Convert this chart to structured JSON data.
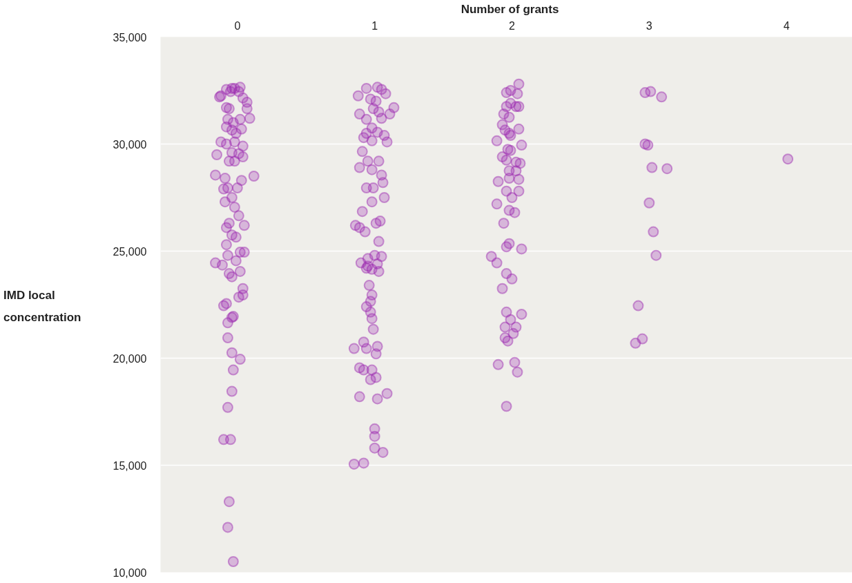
{
  "chart_data": {
    "type": "scatter",
    "xlabel": "Number of grants",
    "ylabel": "IMD local concentration",
    "xlim": [
      -0.56,
      4.53
    ],
    "xticks": [
      0,
      1,
      2,
      3,
      4
    ],
    "ylim": [
      10000,
      35000
    ],
    "yticks": [
      {
        "value": 10000,
        "label": "10,000"
      },
      {
        "value": 15000,
        "label": "15,000"
      },
      {
        "value": 20000,
        "label": "20,000"
      },
      {
        "value": 25000,
        "label": "25,000"
      },
      {
        "value": 30000,
        "label": "30,000"
      },
      {
        "value": 35000,
        "label": "35,000"
      }
    ],
    "grid": "y",
    "marker": "circle",
    "series": [
      {
        "color": "#9c27b0",
        "x": [
          -0.13,
          -0.12,
          -0.08,
          -0.04,
          -0.02,
          0.02,
          0.01,
          -0.05,
          -0.08,
          -0.06,
          0.04,
          0.07,
          0.07,
          -0.07,
          -0.03,
          0.02,
          0.09,
          -0.08,
          -0.04,
          -0.01,
          0.03,
          -0.02,
          -0.12,
          -0.08,
          0.04,
          -0.04,
          0.01,
          -0.15,
          0.04,
          -0.06,
          -0.02,
          -0.16,
          -0.09,
          0.03,
          0.12,
          -0.07,
          -0.1,
          0.0,
          -0.04,
          -0.09,
          0.01,
          -0.02,
          0.05,
          -0.08,
          -0.06,
          -0.04,
          -0.01,
          -0.16,
          -0.11,
          -0.07,
          -0.08,
          0.02,
          0.05,
          -0.06,
          -0.01,
          0.02,
          -0.04,
          0.04,
          0.04,
          0.01,
          -0.1,
          -0.08,
          -0.04,
          -0.03,
          -0.07,
          -0.07,
          0.02,
          -0.04,
          -0.03,
          -0.04,
          -0.07,
          -0.1,
          -0.05,
          -0.06,
          -0.07,
          -0.03,
          1.02,
          0.88,
          0.94,
          1.05,
          1.08,
          0.97,
          1.01,
          0.99,
          1.03,
          1.14,
          1.11,
          0.89,
          0.94,
          1.05,
          0.98,
          1.07,
          1.02,
          0.92,
          0.98,
          1.09,
          0.91,
          0.94,
          0.95,
          0.89,
          1.03,
          0.98,
          1.05,
          1.06,
          0.94,
          0.99,
          0.98,
          1.07,
          0.91,
          0.86,
          0.89,
          0.93,
          1.01,
          1.04,
          1.03,
          1.0,
          0.95,
          0.95,
          1.02,
          1.05,
          0.9,
          0.94,
          0.98,
          1.03,
          0.96,
          0.98,
          0.97,
          0.94,
          0.97,
          0.98,
          0.99,
          0.92,
          0.85,
          0.94,
          1.02,
          1.01,
          0.89,
          0.92,
          0.98,
          1.01,
          0.97,
          0.89,
          1.02,
          1.09,
          1.0,
          1.0,
          1.0,
          1.06,
          0.85,
          0.92,
          2.05,
          1.96,
          1.99,
          2.04,
          1.96,
          1.99,
          2.03,
          1.94,
          1.98,
          2.05,
          1.93,
          1.95,
          1.98,
          2.05,
          1.89,
          1.99,
          2.07,
          1.97,
          1.99,
          2.03,
          1.93,
          1.96,
          2.06,
          1.98,
          2.03,
          1.98,
          2.05,
          1.9,
          1.96,
          2.05,
          1.89,
          2.0,
          1.98,
          1.94,
          2.02,
          1.98,
          1.96,
          2.07,
          1.85,
          1.89,
          1.96,
          2.0,
          1.93,
          1.96,
          2.07,
          1.99,
          1.95,
          2.03,
          1.95,
          1.97,
          2.01,
          1.9,
          2.02,
          2.04,
          1.96,
          2.97,
          3.01,
          3.09,
          2.97,
          2.99,
          3.02,
          3.13,
          3.0,
          3.03,
          3.05,
          2.92,
          2.95,
          2.9,
          4.01
        ],
        "values": [
          32200,
          32250,
          32550,
          32600,
          32600,
          32650,
          32450,
          32450,
          31700,
          31650,
          32150,
          31950,
          31650,
          31150,
          31000,
          31150,
          31200,
          30800,
          30650,
          30500,
          30700,
          30100,
          30100,
          30000,
          29900,
          29600,
          29550,
          29500,
          29400,
          29200,
          29200,
          28550,
          28400,
          28300,
          28500,
          27950,
          27900,
          27950,
          27500,
          27300,
          26650,
          27050,
          26200,
          26100,
          26300,
          25750,
          25650,
          24450,
          24350,
          24800,
          25300,
          24950,
          24950,
          23950,
          24550,
          24050,
          23800,
          23250,
          22950,
          22850,
          22450,
          22550,
          21900,
          21950,
          21650,
          20950,
          19950,
          20250,
          19450,
          18450,
          17700,
          16200,
          16200,
          13300,
          12100,
          10500,
          32650,
          32250,
          32600,
          32550,
          32350,
          32100,
          32000,
          31650,
          31500,
          31700,
          31400,
          31400,
          31150,
          31200,
          30750,
          30400,
          30550,
          30300,
          30150,
          30100,
          29650,
          30500,
          29200,
          28900,
          29200,
          28800,
          28550,
          28200,
          27950,
          27950,
          27300,
          27500,
          26850,
          26200,
          26100,
          25900,
          26300,
          26400,
          25450,
          24800,
          24650,
          24300,
          24400,
          24750,
          24450,
          24200,
          24150,
          24050,
          23400,
          22950,
          22650,
          22400,
          22150,
          21850,
          21350,
          20750,
          20450,
          20450,
          20550,
          20200,
          19550,
          19450,
          19450,
          19100,
          19000,
          18200,
          18100,
          18350,
          16700,
          16350,
          15800,
          15600,
          15050,
          15100,
          32800,
          32400,
          32500,
          32350,
          31750,
          31900,
          31750,
          31400,
          31250,
          31750,
          30900,
          30650,
          30500,
          30700,
          30150,
          30400,
          29950,
          29750,
          29700,
          29150,
          29400,
          29250,
          29100,
          28750,
          28750,
          28400,
          28350,
          28250,
          27800,
          27800,
          27200,
          27500,
          26900,
          26300,
          26800,
          25350,
          25200,
          25100,
          24750,
          24450,
          23950,
          23700,
          23250,
          22150,
          22050,
          21800,
          21450,
          21450,
          20950,
          20800,
          21150,
          19700,
          19800,
          19350,
          17750,
          32400,
          32450,
          32200,
          30000,
          29950,
          28900,
          28850,
          27250,
          25900,
          24800,
          22450,
          20900,
          20700,
          29300
        ]
      }
    ]
  }
}
